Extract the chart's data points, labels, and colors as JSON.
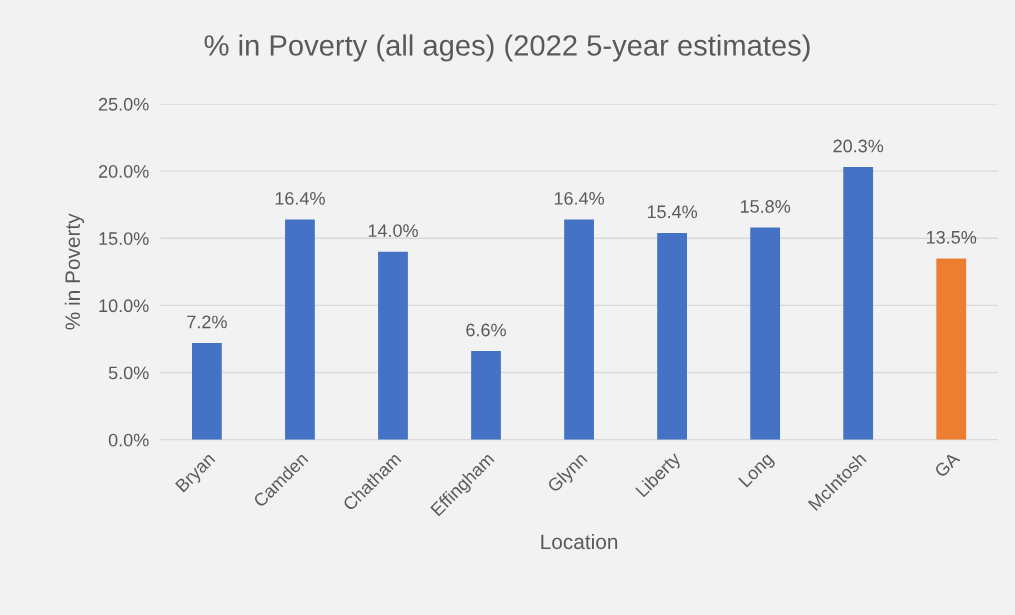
{
  "chart_data": {
    "type": "bar",
    "title": "% in Poverty (all ages) (2022 5-year estimates)",
    "xlabel": "Location",
    "ylabel": "% in Poverty",
    "categories": [
      "Bryan",
      "Camden",
      "Chatham",
      "Effingham",
      "Glynn",
      "Liberty",
      "Long",
      "McIntosh",
      "GA"
    ],
    "values": [
      7.2,
      16.4,
      14.0,
      6.6,
      16.4,
      15.4,
      15.8,
      20.3,
      13.5
    ],
    "colors": [
      "#4472c4",
      "#4472c4",
      "#4472c4",
      "#4472c4",
      "#4472c4",
      "#4472c4",
      "#4472c4",
      "#4472c4",
      "#ed7d31"
    ],
    "value_labels": [
      "7.2%",
      "16.4%",
      "14.0%",
      "6.6%",
      "16.4%",
      "15.4%",
      "15.8%",
      "20.3%",
      "13.5%"
    ],
    "ylim": [
      0,
      25
    ],
    "yticks": [
      {
        "value": 0,
        "label": "0.0%"
      },
      {
        "value": 5,
        "label": "5.0%"
      },
      {
        "value": 10,
        "label": "10.0%"
      },
      {
        "value": 15,
        "label": "15.0%"
      },
      {
        "value": 20,
        "label": "20.0%"
      },
      {
        "value": 25,
        "label": "25.0%"
      }
    ],
    "grid": "y",
    "legend": false
  }
}
